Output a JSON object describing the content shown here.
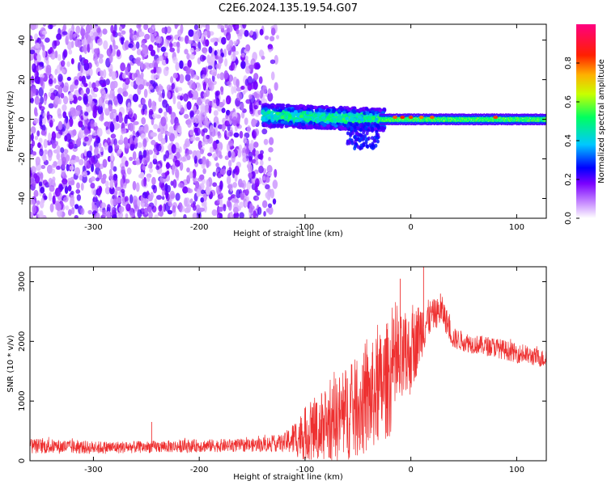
{
  "figure": {
    "title": "C2E6.2024.135.19.54.G07"
  },
  "chart_data": [
    {
      "type": "heatmap",
      "xlabel": "Height of straight line (km)",
      "ylabel": "Frequency (Hz)",
      "xlim": [
        -360,
        128
      ],
      "ylim": [
        -50,
        48
      ],
      "xticks": [
        -300,
        -200,
        -100,
        0,
        100
      ],
      "yticks": [
        -40,
        -20,
        0,
        20,
        40
      ],
      "colorbar": {
        "label": "Normalized spectral amplitude",
        "range": [
          0,
          1
        ],
        "ticks": [
          0.0,
          0.2,
          0.4,
          0.6,
          0.8
        ],
        "tick_labels": [
          "0.0",
          "0.2",
          "0.4",
          "0.6",
          "0.8"
        ],
        "colormap": [
          "#ffffff",
          "#c78cff",
          "#7a00ff",
          "#0000ff",
          "#00c8ff",
          "#00ff60",
          "#c8ff00",
          "#ffb000",
          "#ff2000",
          "#ff0080"
        ]
      },
      "regions": [
        {
          "description_range_x": [
            -360,
            -130
          ],
          "y_range": [
            -50,
            48
          ],
          "amplitude": 0.05
        },
        {
          "description_range_x": [
            -140,
            -30
          ],
          "y_center": 2,
          "y_width": 8,
          "amplitude": 0.3
        },
        {
          "description_range_x": [
            -30,
            128
          ],
          "y_center": 0,
          "y_width": 4,
          "amplitude": 0.5
        }
      ]
    },
    {
      "type": "line",
      "xlabel": "Height of straight line (km)",
      "ylabel": "SNR (10 * v/v)",
      "xlim": [
        -360,
        128
      ],
      "ylim": [
        0,
        3250
      ],
      "xticks": [
        -300,
        -200,
        -100,
        0,
        100
      ],
      "yticks": [
        0,
        1000,
        2000,
        3000
      ],
      "color": "#ee3030",
      "envelope": [
        {
          "x": -360,
          "base": 250,
          "noise": 130
        },
        {
          "x": -300,
          "base": 220,
          "noise": 110
        },
        {
          "x": -250,
          "base": 230,
          "noise": 100
        },
        {
          "x": -200,
          "base": 250,
          "noise": 110
        },
        {
          "x": -150,
          "base": 260,
          "noise": 110
        },
        {
          "x": -120,
          "base": 300,
          "noise": 150
        },
        {
          "x": -100,
          "base": 450,
          "noise": 450
        },
        {
          "x": -80,
          "base": 600,
          "noise": 650
        },
        {
          "x": -60,
          "base": 800,
          "noise": 800
        },
        {
          "x": -40,
          "base": 1000,
          "noise": 900
        },
        {
          "x": -20,
          "base": 1400,
          "noise": 1000
        },
        {
          "x": 0,
          "base": 1800,
          "noise": 700
        },
        {
          "x": 10,
          "base": 2200,
          "noise": 500
        },
        {
          "x": 20,
          "base": 2450,
          "noise": 250
        },
        {
          "x": 30,
          "base": 2500,
          "noise": 250
        },
        {
          "x": 40,
          "base": 2050,
          "noise": 180
        },
        {
          "x": 60,
          "base": 1950,
          "noise": 160
        },
        {
          "x": 80,
          "base": 1900,
          "noise": 170
        },
        {
          "x": 100,
          "base": 1800,
          "noise": 160
        },
        {
          "x": 128,
          "base": 1700,
          "noise": 150
        }
      ],
      "peaks": [
        {
          "x": -245,
          "y": 650
        },
        {
          "x": -10,
          "y": 3050
        },
        {
          "x": 12,
          "y": 3250
        },
        {
          "x": 28,
          "y": 2800
        }
      ]
    }
  ]
}
